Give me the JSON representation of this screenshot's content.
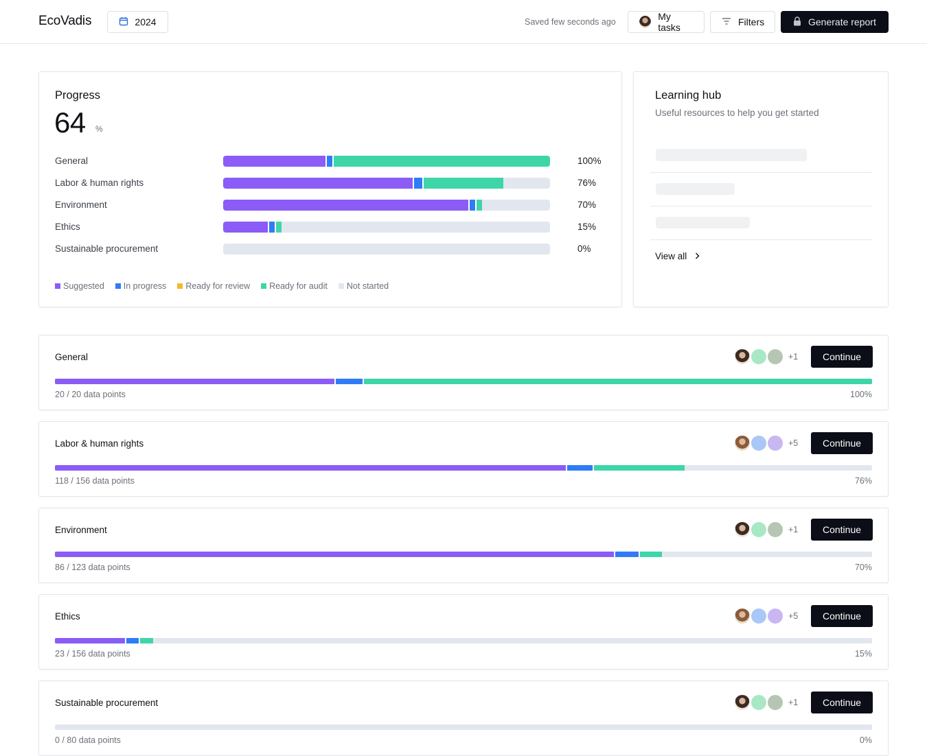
{
  "header": {
    "brand": "EcoVadis",
    "year": "2024",
    "saved_status": "Saved few seconds ago",
    "my_tasks_label": "My tasks",
    "filters_label": "Filters",
    "generate_report_label": "Generate report"
  },
  "progress": {
    "title": "Progress",
    "value": "64",
    "unit": "%",
    "categories": [
      {
        "label": "General",
        "pct": "100%",
        "suggested": 0.318,
        "in_progress": 0.02,
        "ready_for_audit": 0.662
      },
      {
        "label": "Labor & human rights",
        "pct": "76%",
        "suggested": 0.583,
        "in_progress": 0.03,
        "ready_for_audit": 0.245
      },
      {
        "label": "Environment",
        "pct": "70%",
        "suggested": 0.755,
        "in_progress": 0.02,
        "ready_for_audit": 0.018
      },
      {
        "label": "Ethics",
        "pct": "15%",
        "suggested": 0.141,
        "in_progress": 0.02,
        "ready_for_audit": 0.018
      },
      {
        "label": "Sustainable procurement",
        "pct": "0%",
        "suggested": 0,
        "in_progress": 0,
        "ready_for_audit": 0
      }
    ],
    "legend": [
      {
        "label": "Suggested",
        "color": "#8b5cf6"
      },
      {
        "label": "In progress",
        "color": "#2f7cf6"
      },
      {
        "label": "Ready for review",
        "color": "#f5b82e"
      },
      {
        "label": "Ready for audit",
        "color": "#3ed6a9"
      },
      {
        "label": "Not started",
        "color": "#e2e7ef"
      }
    ]
  },
  "learning_hub": {
    "title": "Learning hub",
    "subtitle": "Useful resources to help you get started",
    "view_all_label": "View all"
  },
  "sections": [
    {
      "title": "General",
      "points": "20 / 20 data points",
      "pct": "100%",
      "more": "+1",
      "continue_label": "Continue",
      "suggested": 0.344,
      "in_progress": 0.034,
      "ready_for_audit": 0.622,
      "avatar_colors": [
        "#a8e8c4",
        "#b7c6b4"
      ]
    },
    {
      "title": "Labor & human rights",
      "points": "118 / 156 data points",
      "pct": "76%",
      "more": "+5",
      "continue_label": "Continue",
      "suggested": 0.627,
      "in_progress": 0.033,
      "ready_for_audit": 0.111,
      "avatar_colors": [
        "#a9c8f7",
        "#c9b7f3"
      ]
    },
    {
      "title": "Environment",
      "points": "86 / 123 data points",
      "pct": "70%",
      "more": "+1",
      "continue_label": "Continue",
      "suggested": 0.686,
      "in_progress": 0.03,
      "ready_for_audit": 0.027,
      "avatar_colors": [
        "#a8e8c4",
        "#b7c6b4"
      ]
    },
    {
      "title": "Ethics",
      "points": "23 / 156 data points",
      "pct": "15%",
      "more": "+5",
      "continue_label": "Continue",
      "suggested": 0.087,
      "in_progress": 0.017,
      "ready_for_audit": 0.016,
      "avatar_colors": [
        "#a9c8f7",
        "#c9b7f3"
      ]
    },
    {
      "title": "Sustainable procurement",
      "points": "0 / 80 data points",
      "pct": "0%",
      "more": "+1",
      "continue_label": "Continue",
      "suggested": 0,
      "in_progress": 0,
      "ready_for_audit": 0,
      "avatar_colors": [
        "#a8e8c4",
        "#b7c6b4"
      ]
    }
  ],
  "colors": {
    "suggested": "#8b5cf6",
    "in_progress": "#2f7cf6",
    "ready_for_audit": "#3ed6a9",
    "not_started": "#e2e7ef"
  }
}
